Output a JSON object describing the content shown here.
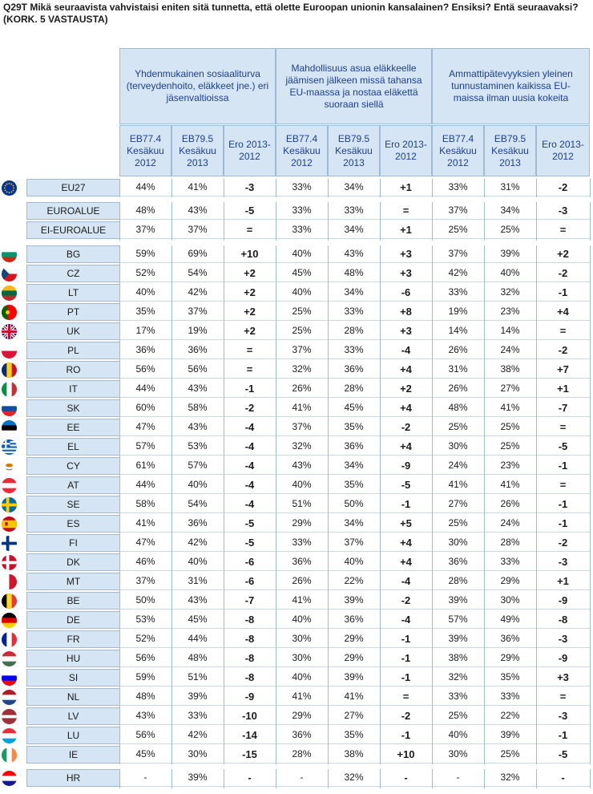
{
  "title": "Q29T Mikä seuraavista vahvistaisi eniten sitä tunnetta, että olette Euroopan unionin kansalainen? Ensiksi? Entä seuraavaksi? (KORK. 5 VASTAUSTA)",
  "groups": [
    "Yhdenmukainen sosiaaliturva (terveydenhoito, eläkkeet jne.) eri jäsenvaltioissa",
    "Mahdollisuus asua eläkkeelle jäämisen jälkeen missä tahansa EU-maassa ja nostaa eläkettä suoraan siellä",
    "Ammattipätevyyksien yleinen tunnustaminen kaikissa EU-maissa ilman uusia kokeita"
  ],
  "subheaders": [
    "EB77.4 Kesäkuu 2012",
    "EB79.5 Kesäkuu 2013",
    "Ero 2013-2012"
  ],
  "colors": {
    "header_bg": "#d5e5f3",
    "header_text": "#1d3f8f",
    "border": "#9fbad3"
  },
  "rows": [
    {
      "label": "EU27",
      "flag": "eu",
      "v": [
        "44%",
        "41%",
        "-3",
        "33%",
        "34%",
        "+1",
        "33%",
        "31%",
        "-2"
      ]
    },
    {
      "label": "EUROALUE",
      "flag": "",
      "v": [
        "48%",
        "43%",
        "-5",
        "33%",
        "33%",
        "=",
        "37%",
        "34%",
        "-3"
      ]
    },
    {
      "label": "EI-EUROALUE",
      "flag": "",
      "v": [
        "37%",
        "37%",
        "=",
        "33%",
        "34%",
        "+1",
        "25%",
        "25%",
        "="
      ]
    },
    {
      "label": "BG",
      "flag": "bg",
      "v": [
        "59%",
        "69%",
        "+10",
        "40%",
        "43%",
        "+3",
        "37%",
        "39%",
        "+2"
      ]
    },
    {
      "label": "CZ",
      "flag": "cz",
      "v": [
        "52%",
        "54%",
        "+2",
        "45%",
        "48%",
        "+3",
        "42%",
        "40%",
        "-2"
      ]
    },
    {
      "label": "LT",
      "flag": "lt",
      "v": [
        "40%",
        "42%",
        "+2",
        "40%",
        "34%",
        "-6",
        "33%",
        "32%",
        "-1"
      ]
    },
    {
      "label": "PT",
      "flag": "pt",
      "v": [
        "35%",
        "37%",
        "+2",
        "25%",
        "33%",
        "+8",
        "19%",
        "23%",
        "+4"
      ]
    },
    {
      "label": "UK",
      "flag": "uk",
      "v": [
        "17%",
        "19%",
        "+2",
        "25%",
        "28%",
        "+3",
        "14%",
        "14%",
        "="
      ]
    },
    {
      "label": "PL",
      "flag": "pl",
      "v": [
        "36%",
        "36%",
        "=",
        "37%",
        "33%",
        "-4",
        "26%",
        "24%",
        "-2"
      ]
    },
    {
      "label": "RO",
      "flag": "ro",
      "v": [
        "56%",
        "56%",
        "=",
        "32%",
        "36%",
        "+4",
        "31%",
        "38%",
        "+7"
      ]
    },
    {
      "label": "IT",
      "flag": "it",
      "v": [
        "44%",
        "43%",
        "-1",
        "26%",
        "28%",
        "+2",
        "26%",
        "27%",
        "+1"
      ]
    },
    {
      "label": "SK",
      "flag": "sk",
      "v": [
        "60%",
        "58%",
        "-2",
        "41%",
        "45%",
        "+4",
        "48%",
        "41%",
        "-7"
      ]
    },
    {
      "label": "EE",
      "flag": "ee",
      "v": [
        "47%",
        "43%",
        "-4",
        "37%",
        "35%",
        "-2",
        "25%",
        "25%",
        "="
      ]
    },
    {
      "label": "EL",
      "flag": "el",
      "v": [
        "57%",
        "53%",
        "-4",
        "32%",
        "36%",
        "+4",
        "30%",
        "25%",
        "-5"
      ]
    },
    {
      "label": "CY",
      "flag": "cy",
      "v": [
        "61%",
        "57%",
        "-4",
        "43%",
        "34%",
        "-9",
        "24%",
        "23%",
        "-1"
      ]
    },
    {
      "label": "AT",
      "flag": "at",
      "v": [
        "44%",
        "40%",
        "-4",
        "40%",
        "35%",
        "-5",
        "41%",
        "41%",
        "="
      ]
    },
    {
      "label": "SE",
      "flag": "se",
      "v": [
        "58%",
        "54%",
        "-4",
        "51%",
        "50%",
        "-1",
        "27%",
        "26%",
        "-1"
      ]
    },
    {
      "label": "ES",
      "flag": "es",
      "v": [
        "41%",
        "36%",
        "-5",
        "29%",
        "34%",
        "+5",
        "25%",
        "24%",
        "-1"
      ]
    },
    {
      "label": "FI",
      "flag": "fi",
      "v": [
        "47%",
        "42%",
        "-5",
        "33%",
        "37%",
        "+4",
        "30%",
        "28%",
        "-2"
      ]
    },
    {
      "label": "DK",
      "flag": "dk",
      "v": [
        "46%",
        "40%",
        "-6",
        "36%",
        "40%",
        "+4",
        "36%",
        "33%",
        "-3"
      ]
    },
    {
      "label": "MT",
      "flag": "mt",
      "v": [
        "37%",
        "31%",
        "-6",
        "26%",
        "22%",
        "-4",
        "28%",
        "29%",
        "+1"
      ]
    },
    {
      "label": "BE",
      "flag": "be",
      "v": [
        "50%",
        "43%",
        "-7",
        "41%",
        "39%",
        "-2",
        "39%",
        "30%",
        "-9"
      ]
    },
    {
      "label": "DE",
      "flag": "de",
      "v": [
        "53%",
        "45%",
        "-8",
        "40%",
        "36%",
        "-4",
        "57%",
        "49%",
        "-8"
      ]
    },
    {
      "label": "FR",
      "flag": "fr",
      "v": [
        "52%",
        "44%",
        "-8",
        "30%",
        "29%",
        "-1",
        "39%",
        "36%",
        "-3"
      ]
    },
    {
      "label": "HU",
      "flag": "hu",
      "v": [
        "56%",
        "48%",
        "-8",
        "30%",
        "29%",
        "-1",
        "38%",
        "29%",
        "-9"
      ]
    },
    {
      "label": "SI",
      "flag": "si",
      "v": [
        "59%",
        "51%",
        "-8",
        "40%",
        "39%",
        "-1",
        "32%",
        "35%",
        "+3"
      ]
    },
    {
      "label": "NL",
      "flag": "nl",
      "v": [
        "48%",
        "39%",
        "-9",
        "41%",
        "41%",
        "=",
        "33%",
        "33%",
        "="
      ]
    },
    {
      "label": "LV",
      "flag": "lv",
      "v": [
        "43%",
        "33%",
        "-10",
        "29%",
        "27%",
        "-2",
        "25%",
        "22%",
        "-3"
      ]
    },
    {
      "label": "LU",
      "flag": "lu",
      "v": [
        "56%",
        "42%",
        "-14",
        "36%",
        "35%",
        "-1",
        "40%",
        "39%",
        "-1"
      ]
    },
    {
      "label": "IE",
      "flag": "ie",
      "v": [
        "45%",
        "30%",
        "-15",
        "28%",
        "38%",
        "+10",
        "30%",
        "25%",
        "-5"
      ]
    },
    {
      "label": "HR",
      "flag": "hr",
      "v": [
        "-",
        "39%",
        "-",
        "-",
        "32%",
        "-",
        "-",
        "32%",
        "-"
      ]
    }
  ]
}
